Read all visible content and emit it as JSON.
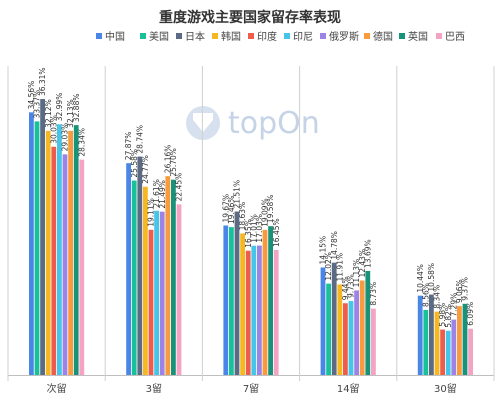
{
  "chart_data": {
    "type": "bar",
    "title": "重度游戏主要国家留存率表现",
    "categories": [
      "次留",
      "3留",
      "7留",
      "14留",
      "30留"
    ],
    "ylim": [
      0,
      40
    ],
    "grid": false,
    "legend_position": "top",
    "value_suffix": "%",
    "series": [
      {
        "name": "中国",
        "color": "#4a86e8",
        "values": [
          34.56,
          27.87,
          19.67,
          14.15,
          10.44
        ]
      },
      {
        "name": "美国",
        "color": "#19c19a",
        "values": [
          33.37,
          25.58,
          19.46,
          12.02,
          8.56
        ]
      },
      {
        "name": "日本",
        "color": "#5b6b86",
        "values": [
          36.31,
          28.74,
          21.51,
          14.78,
          10.58
        ]
      },
      {
        "name": "韩国",
        "color": "#f5b821",
        "values": [
          32.12,
          24.77,
          18.63,
          11.91,
          8.34
        ]
      },
      {
        "name": "印度",
        "color": "#ee5d4c",
        "values": [
          30.03,
          19.11,
          16.35,
          9.44,
          5.98
        ]
      },
      {
        "name": "印尼",
        "color": "#45c6e8",
        "values": [
          32.99,
          21.61,
          17.01,
          9.73,
          5.82
        ]
      },
      {
        "name": "俄罗斯",
        "color": "#9b84e6",
        "values": [
          29.03,
          21.49,
          17.03,
          11.13,
          7.29
        ]
      },
      {
        "name": "德国",
        "color": "#f89a3e",
        "values": [
          32.13,
          26.16,
          19.09,
          12.43,
          9.06
        ]
      },
      {
        "name": "英国",
        "color": "#18937a",
        "values": [
          32.88,
          25.7,
          19.58,
          13.69,
          9.37
        ]
      },
      {
        "name": "巴西",
        "color": "#f4a3c3",
        "values": [
          28.34,
          22.45,
          16.45,
          8.73,
          6.09
        ]
      }
    ]
  },
  "watermark": {
    "text": "topOn"
  }
}
